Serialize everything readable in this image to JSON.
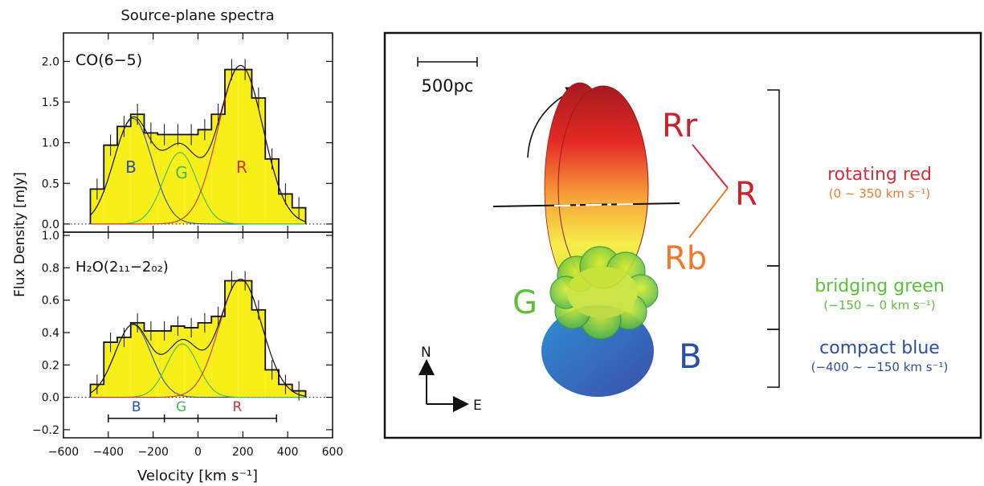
{
  "figure_title": "Source-plane spectra",
  "chart_data": [
    {
      "type": "bar",
      "name": "co-panel",
      "line_label": "CO(6−5)",
      "xlabel": "Velocity [km s⁻¹]",
      "ylabel": "Flux Density [mJy]",
      "xlim": [
        -600,
        600
      ],
      "ylim": [
        -0.1,
        2.35
      ],
      "yticks": [
        0.0,
        0.5,
        1.0,
        1.5,
        2.0
      ],
      "ytick_labels": [
        "0.0",
        "0.5",
        "1.0",
        "1.5",
        "2.0"
      ],
      "bin_edges": [
        -480,
        -420,
        -360,
        -300,
        -240,
        -180,
        -120,
        -60,
        0,
        60,
        120,
        180,
        240,
        300,
        360,
        420,
        480
      ],
      "bin_centers": [
        -450,
        -390,
        -330,
        -270,
        -210,
        -150,
        -90,
        -30,
        30,
        90,
        150,
        210,
        270,
        330,
        390,
        450
      ],
      "values": [
        0.43,
        0.97,
        1.2,
        1.35,
        1.12,
        1.1,
        1.1,
        1.1,
        1.16,
        1.35,
        1.9,
        1.9,
        1.55,
        0.8,
        0.37,
        0.2
      ],
      "errors": [
        0.13,
        0.13,
        0.13,
        0.13,
        0.13,
        0.13,
        0.13,
        0.13,
        0.13,
        0.13,
        0.13,
        0.13,
        0.13,
        0.13,
        0.13,
        0.13
      ],
      "components": [
        {
          "label": "B",
          "color": "#2b4fa3",
          "amplitude": 1.3,
          "center": -290,
          "sigma": 85
        },
        {
          "label": "G",
          "color": "#44b85a",
          "amplitude": 0.88,
          "center": -80,
          "sigma": 75
        },
        {
          "label": "R",
          "color": "#d42f3e",
          "amplitude": 1.95,
          "center": 190,
          "sigma": 100
        }
      ]
    },
    {
      "type": "bar",
      "name": "h2o-panel",
      "line_label": "H₂O(2₁₁−2₀₂)",
      "xlabel": "Velocity [km s⁻¹]",
      "ylabel": "Flux Density [mJy]",
      "xlim": [
        -600,
        600
      ],
      "ylim": [
        -0.25,
        1.02
      ],
      "yticks": [
        -0.2,
        0.0,
        0.2,
        0.4,
        0.6,
        0.8,
        1.0
      ],
      "ytick_labels": [
        "−0.2",
        "0.0",
        "0.2",
        "0.4",
        "0.6",
        "0.8",
        "1.0"
      ],
      "xticks": [
        -600,
        -400,
        -200,
        0,
        200,
        400,
        600
      ],
      "xtick_labels": [
        "−600",
        "−400",
        "−200",
        "0",
        "200",
        "400",
        "600"
      ],
      "bin_edges": [
        -480,
        -420,
        -360,
        -300,
        -240,
        -180,
        -120,
        -60,
        0,
        60,
        120,
        180,
        240,
        300,
        360,
        420,
        480
      ],
      "bin_centers": [
        -450,
        -390,
        -330,
        -270,
        -210,
        -150,
        -90,
        -30,
        30,
        90,
        150,
        210,
        270,
        330,
        390,
        450
      ],
      "values": [
        0.08,
        0.34,
        0.37,
        0.46,
        0.41,
        0.41,
        0.44,
        0.43,
        0.46,
        0.5,
        0.72,
        0.72,
        0.54,
        0.17,
        0.08,
        0.04
      ],
      "errors": [
        0.06,
        0.06,
        0.06,
        0.06,
        0.06,
        0.06,
        0.06,
        0.06,
        0.06,
        0.06,
        0.06,
        0.06,
        0.06,
        0.06,
        0.06,
        0.06
      ],
      "components": [
        {
          "label": "B",
          "color": "#2b4fa3",
          "amplitude": 0.45,
          "center": -290,
          "sigma": 80
        },
        {
          "label": "G",
          "color": "#44b85a",
          "amplitude": 0.33,
          "center": -70,
          "sigma": 70
        },
        {
          "label": "R",
          "color": "#d42f3e",
          "amplitude": 0.73,
          "center": 190,
          "sigma": 95
        }
      ],
      "velocity_ranges": [
        {
          "label": "B",
          "color": "#2b4fa3",
          "from": -400,
          "to": -150
        },
        {
          "label": "G",
          "color": "#44b85a",
          "from": -150,
          "to": 0
        },
        {
          "label": "R",
          "color": "#d42f3e",
          "from": 0,
          "to": 350
        }
      ]
    }
  ],
  "schematic": {
    "scale_label": "500pc",
    "compass": {
      "north": "N",
      "east": "E"
    },
    "labels": {
      "rr": "Rr",
      "rb": "Rb",
      "r": "R",
      "g": "G",
      "b": "B"
    },
    "legend": [
      {
        "name": "rotating red",
        "range": "(0 ~ 350 km s⁻¹)",
        "color": "#d42f3e",
        "range_color": "#f07a2a"
      },
      {
        "name": "bridging green",
        "range": "(−150 ~ 0 km s⁻¹)",
        "color": "#5cc03c",
        "range_color": "#5cc03c"
      },
      {
        "name": "compact blue",
        "range": "(−400 ~ −150 km s⁻¹)",
        "color": "#2b4fa3",
        "range_color": "#2b4fa3"
      }
    ],
    "colors": {
      "red": "#b31f26",
      "orange": "#f07a2a",
      "yellow": "#f5ee4a",
      "green": "#5cc03c",
      "blue": "#2b4fa3"
    }
  }
}
